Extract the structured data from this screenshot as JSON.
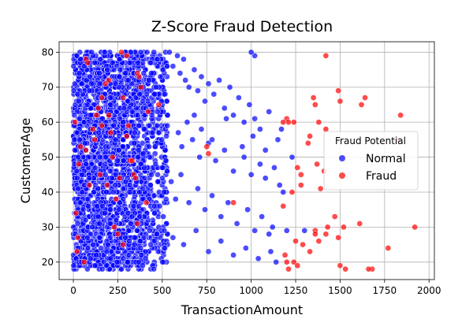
{
  "chart_data": {
    "type": "scatter",
    "title": "Z-Score Fraud Detection",
    "xlabel": "TransactionAmount",
    "ylabel": "CustomerAge",
    "xlim": [
      -80,
      2030
    ],
    "ylim": [
      15,
      83
    ],
    "xticks": [
      0,
      250,
      500,
      750,
      1000,
      1250,
      1500,
      1750,
      2000
    ],
    "yticks": [
      20,
      30,
      40,
      50,
      60,
      70,
      80
    ],
    "grid": true,
    "legend": {
      "title": "Fraud Potential",
      "placement": "right"
    },
    "series": [
      {
        "name": "Normal",
        "color": "#0000ff",
        "generated": {
          "count": 2300,
          "age_min": 18,
          "age_max": 80
        },
        "x": [
          540,
          560,
          585,
          600,
          620,
          630,
          650,
          680,
          700,
          720,
          740,
          760,
          790,
          820,
          850,
          880,
          900,
          930,
          960,
          990,
          1020,
          1050,
          1100,
          1150,
          590,
          610,
          640,
          670,
          710,
          760,
          800,
          850,
          900,
          960,
          1000,
          1050,
          1080,
          1130,
          1160,
          1180,
          550,
          575,
          605,
          650,
          700,
          740,
          780,
          830,
          870,
          920,
          980,
          1020,
          1060,
          1100,
          1120,
          560,
          620,
          690,
          760,
          830,
          900,
          970,
          1040,
          1110,
          1140,
          1200,
          1300,
          1020,
          1000,
          680,
          720,
          780,
          860,
          950,
          1010,
          1080,
          1170,
          1230
        ],
        "y": [
          80,
          76,
          79,
          74,
          78,
          72,
          70,
          75,
          69,
          73,
          66,
          71,
          68,
          72,
          64,
          70,
          62,
          67,
          60,
          65,
          61,
          58,
          63,
          55,
          57,
          53,
          60,
          55,
          50,
          54,
          49,
          52,
          46,
          50,
          45,
          48,
          44,
          47,
          42,
          40,
          43,
          38,
          45,
          37,
          41,
          35,
          39,
          33,
          37,
          31,
          35,
          29,
          33,
          28,
          30,
          27,
          25,
          29,
          23,
          26,
          22,
          24,
          21,
          23,
          20,
          29,
          29,
          79,
          80,
          62,
          58,
          55,
          61,
          53,
          56,
          52,
          58,
          50
        ]
      },
      {
        "name": "Fraud",
        "color": "#ff0000",
        "x": [
          1420,
          1840,
          1490,
          1500,
          1640,
          1620,
          1200,
          1210,
          1240,
          1350,
          1360,
          1330,
          1420,
          1380,
          1320,
          1260,
          1280,
          1370,
          1410,
          1280,
          1230,
          1180,
          1470,
          1520,
          1430,
          1390,
          1610,
          1680,
          1770,
          1830,
          1920,
          1250,
          1290,
          1330,
          1360,
          1380,
          1420,
          1490,
          1500,
          1530,
          1660,
          750,
          760,
          900,
          1240,
          1260,
          1360,
          1190,
          1200,
          1210,
          1180,
          10,
          30,
          90,
          160,
          200,
          260,
          300,
          340,
          370,
          410,
          20,
          60,
          120,
          180,
          230,
          280,
          320,
          360,
          420,
          25,
          70,
          140,
          220,
          310,
          80,
          150,
          270,
          360,
          40,
          200,
          280,
          130,
          330,
          350,
          480,
          210,
          70,
          240,
          380,
          15,
          110,
          190,
          300,
          250,
          160
        ],
        "y": [
          79,
          62,
          69,
          66,
          67,
          65,
          61,
          60,
          60,
          67,
          65,
          56,
          58,
          60,
          54,
          47,
          45,
          48,
          46,
          42,
          40,
          36,
          33,
          30,
          30,
          41,
          31,
          18,
          24,
          55,
          30,
          26,
          25,
          23,
          29,
          26,
          28,
          27,
          19,
          18,
          18,
          53,
          51,
          37,
          20,
          19,
          28,
          22,
          20,
          18,
          60,
          60,
          48,
          42,
          59,
          62,
          44,
          56,
          45,
          73,
          37,
          23,
          20,
          55,
          71,
          30,
          67,
          49,
          74,
          63,
          27,
          78,
          64,
          50,
          59,
          77,
          45,
          80,
          31,
          53,
          72,
          25,
          62,
          49,
          44,
          65,
          57,
          52,
          38,
          70,
          34,
          58,
          42,
          79,
          28,
          67
        ]
      }
    ]
  }
}
